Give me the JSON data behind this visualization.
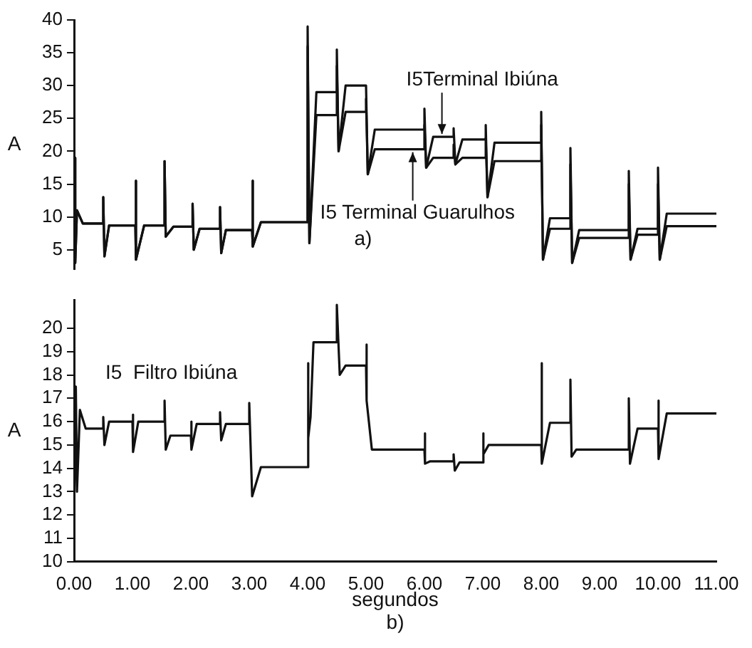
{
  "chart_data": [
    {
      "type": "line",
      "ylabel": "A",
      "xlim": [
        0,
        11
      ],
      "ylim": [
        2,
        40
      ],
      "yticks": [
        5,
        10,
        15,
        20,
        25,
        30,
        35,
        40
      ],
      "tick_labels": "y",
      "grid": false,
      "marker": "none",
      "line_style": "solid",
      "annotations": [
        {
          "text": "I5Terminal Ibiúna",
          "x": 6.3,
          "y": 22.2
        },
        {
          "text": "I5 Terminal Guarulhos",
          "x": 5.8,
          "y": 20.3
        },
        "a)"
      ],
      "series": [
        {
          "color": "#111111",
          "x": [
            0,
            0.02,
            0.05,
            0.15,
            0.5,
            0.5,
            0.52,
            0.6,
            1.05,
            1.05,
            1.07,
            1.2,
            1.55,
            1.55,
            1.57,
            1.7,
            2.03,
            2.03,
            2.05,
            2.15,
            2.5,
            2.5,
            2.52,
            2.6,
            3.05,
            3.05,
            3.07,
            3.2,
            4.0,
            4.0,
            4.03,
            4.15,
            4.5,
            4.5,
            4.53,
            4.65,
            5.0,
            5.0,
            5.03,
            5.15,
            6.0,
            6.0,
            6.03,
            6.15,
            6.5,
            6.5,
            6.53,
            6.65,
            7.05,
            7.05,
            7.08,
            7.2,
            8.0,
            8.0,
            8.03,
            8.15,
            8.5,
            8.5,
            8.53,
            8.65,
            9.5,
            9.5,
            9.53,
            9.65,
            10.0,
            10.0,
            10.03,
            10.15,
            11
          ],
          "values": [
            19,
            3,
            11,
            9,
            9,
            13,
            4,
            8.7,
            8.7,
            15.5,
            3.5,
            8.7,
            8.7,
            18.5,
            7,
            8.5,
            8.5,
            12,
            5,
            8.2,
            8.2,
            11.5,
            4.5,
            8,
            8,
            15.5,
            5.5,
            9.2,
            9.2,
            39,
            6,
            29,
            29,
            35.5,
            20,
            30,
            30,
            30,
            16.5,
            23.3,
            23.3,
            26.5,
            17.5,
            22.2,
            22.2,
            23.5,
            18,
            21.8,
            21.8,
            24,
            13,
            21.3,
            21.3,
            26,
            3.5,
            9.8,
            9.8,
            20.5,
            3,
            8,
            8,
            17,
            3.5,
            8.2,
            8.2,
            17.5,
            3.5,
            10.5,
            10.5
          ]
        },
        {
          "color": "#111111",
          "x": [
            0,
            0.02,
            0.05,
            0.15,
            0.5,
            0.5,
            0.52,
            0.6,
            1.05,
            1.05,
            1.07,
            1.2,
            1.55,
            1.55,
            1.57,
            1.7,
            2.03,
            2.03,
            2.05,
            2.15,
            2.5,
            2.5,
            2.52,
            2.6,
            3.05,
            3.05,
            3.07,
            3.2,
            4.0,
            4.0,
            4.03,
            4.15,
            4.5,
            4.5,
            4.53,
            4.65,
            5.0,
            5.0,
            5.03,
            5.15,
            6.0,
            6.0,
            6.03,
            6.15,
            6.5,
            6.5,
            6.53,
            6.65,
            7.05,
            7.05,
            7.08,
            7.2,
            8.0,
            8.0,
            8.03,
            8.15,
            8.5,
            8.5,
            8.53,
            8.65,
            9.5,
            9.5,
            9.53,
            9.65,
            10.0,
            10.0,
            10.03,
            10.15,
            11
          ],
          "values": [
            19,
            3,
            11,
            9,
            9,
            13,
            4,
            8.7,
            8.7,
            15.5,
            3.5,
            8.7,
            8.7,
            18.5,
            7,
            8.5,
            8.5,
            12,
            5,
            8.2,
            8.2,
            11.5,
            4.5,
            8,
            8,
            15.5,
            5.5,
            9.2,
            9.2,
            36,
            6,
            25.5,
            25.5,
            33,
            20,
            26,
            26,
            28,
            16.5,
            20.3,
            20.3,
            24,
            17.5,
            19,
            19,
            21,
            18,
            19,
            19,
            22,
            13,
            18.5,
            18.5,
            24,
            3.5,
            8.2,
            8.2,
            18,
            3,
            6.8,
            6.8,
            15,
            3.5,
            7.3,
            7.3,
            15,
            3.5,
            8.6,
            8.6
          ]
        }
      ]
    },
    {
      "type": "line",
      "ylabel": "A",
      "xlabel": "segundos",
      "xlim": [
        0,
        11
      ],
      "ylim": [
        10,
        21.2
      ],
      "yticks": [
        10,
        11,
        12,
        13,
        14,
        15,
        16,
        17,
        18,
        19,
        20
      ],
      "xticks": [
        {
          "value": 0,
          "label": "0.00"
        },
        {
          "value": 1,
          "label": "1.00"
        },
        {
          "value": 2,
          "label": "2.00"
        },
        {
          "value": 3,
          "label": "3.00"
        },
        {
          "value": 4,
          "label": "4.00"
        },
        {
          "value": 5,
          "label": "5.00"
        },
        {
          "value": 6,
          "label": "6.00"
        },
        {
          "value": 7,
          "label": "7.00"
        },
        {
          "value": 8,
          "label": "8.00"
        },
        {
          "value": 9,
          "label": "9.00"
        },
        {
          "value": 10,
          "label": "10.00"
        },
        {
          "value": 11,
          "label": "11.00"
        }
      ],
      "grid": false,
      "marker": "none",
      "line_style": "solid",
      "annotations": [
        "b)"
      ],
      "series": [
        {
          "name": "I5  Filtro Ibiúna",
          "color": "#111111",
          "x": [
            0,
            0.03,
            0.05,
            0.1,
            0.2,
            0.5,
            0.5,
            0.52,
            0.6,
            1.0,
            1.0,
            1.02,
            1.1,
            1.55,
            1.55,
            1.57,
            1.65,
            2.0,
            2.0,
            2.02,
            2.1,
            2.5,
            2.5,
            2.52,
            2.6,
            3.0,
            3.0,
            3.05,
            3.2,
            4.0,
            4.0,
            4.02,
            4.05,
            4.1,
            4.5,
            4.5,
            4.55,
            4.65,
            5.0,
            5.0,
            5.02,
            5.1,
            6.0,
            6.0,
            6.02,
            6.1,
            6.5,
            6.5,
            6.52,
            6.6,
            7.0,
            7.0,
            7.02,
            7.1,
            8.0,
            8.0,
            8.02,
            8.15,
            8.5,
            8.5,
            8.52,
            8.6,
            9.5,
            9.5,
            9.52,
            9.65,
            10.0,
            10.0,
            10.02,
            10.15,
            11
          ],
          "values": [
            12,
            17.5,
            13,
            16.5,
            15.7,
            15.7,
            16.2,
            15,
            16,
            16,
            16.3,
            14.7,
            16,
            16,
            16.9,
            14.8,
            15.4,
            15.4,
            16,
            14.8,
            15.9,
            15.9,
            16.4,
            15.2,
            15.9,
            15.9,
            16.8,
            12.8,
            14.05,
            14.05,
            18.5,
            15.3,
            16.2,
            19.4,
            19.4,
            21,
            18,
            18.4,
            18.4,
            19.3,
            16.9,
            14.8,
            14.8,
            15.5,
            14.2,
            14.3,
            14.3,
            14.6,
            13.9,
            14.25,
            14.25,
            15.5,
            14.6,
            15,
            15,
            18.5,
            14.2,
            15.95,
            15.95,
            17.8,
            14.5,
            14.8,
            14.8,
            17,
            14.2,
            15.7,
            15.7,
            16.9,
            14.4,
            16.35,
            16.35
          ]
        }
      ]
    }
  ]
}
